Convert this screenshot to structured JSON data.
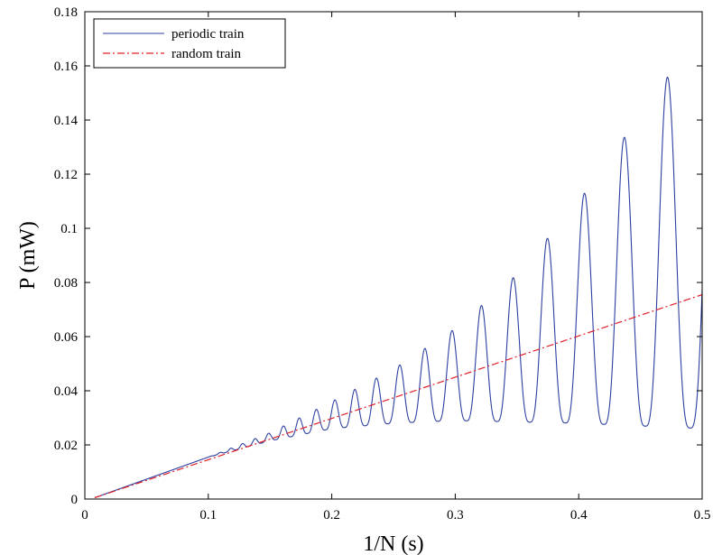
{
  "chart_data": {
    "type": "line",
    "title": "",
    "xlabel": "1/N (s)",
    "ylabel": "P (mW)",
    "xlim": [
      0,
      0.5
    ],
    "ylim": [
      0,
      0.18
    ],
    "xticks": [
      "0",
      "0.1",
      "0.2",
      "0.3",
      "0.4",
      "0.5"
    ],
    "yticks": [
      "0",
      "0.02",
      "0.04",
      "0.06",
      "0.08",
      "0.1",
      "0.12",
      "0.14",
      "0.16",
      "0.18"
    ],
    "grid": false,
    "legend_position": "top-left",
    "series": [
      {
        "name": "periodic train",
        "style": "solid",
        "color": "#2d3fa0",
        "description_points": {
          "x": [
            0.008,
            0.1,
            0.15,
            0.2,
            0.25,
            0.3,
            0.35,
            0.4,
            0.45,
            0.48,
            0.5
          ],
          "ymax": [
            0.0005,
            0.0155,
            0.0245,
            0.036,
            0.048,
            0.063,
            0.083,
            0.11,
            0.142,
            0.161,
            0.172
          ],
          "ymin": [
            0.0005,
            0.0155,
            0.0215,
            0.026,
            0.028,
            0.029,
            0.0285,
            0.028,
            0.027,
            0.0265,
            0.026
          ]
        }
      },
      {
        "name": "random train",
        "style": "dash-dot",
        "color": "#e0202a",
        "x": [
          0.008,
          0.5
        ],
        "y": [
          0.0005,
          0.0755
        ]
      }
    ]
  }
}
